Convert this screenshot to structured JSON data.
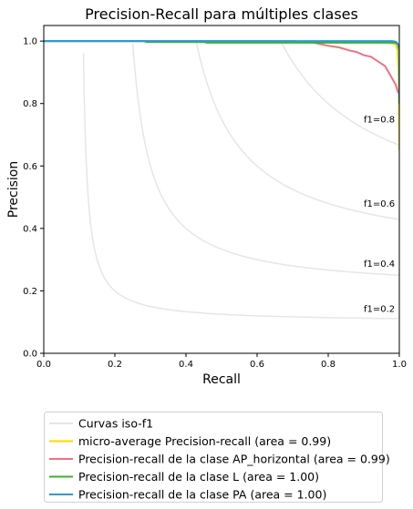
{
  "chart_data": {
    "type": "line",
    "title": "Precision-Recall para múltiples clases",
    "xlabel": "Recall",
    "ylabel": "Precision",
    "xlim": [
      0.0,
      1.0
    ],
    "ylim": [
      0.0,
      1.05
    ],
    "xticks": [
      "0.0",
      "0.2",
      "0.4",
      "0.6",
      "0.8",
      "1.0"
    ],
    "yticks": [
      "0.0",
      "0.2",
      "0.4",
      "0.6",
      "0.8",
      "1.0"
    ],
    "grid": false,
    "legend_position": "below",
    "iso_f1": {
      "legend": "Curvas iso-f1",
      "color": "#e6e6e6",
      "levels": [
        {
          "f": 0.2,
          "label": "f1=0.2"
        },
        {
          "f": 0.4,
          "label": "f1=0.4"
        },
        {
          "f": 0.6,
          "label": "f1=0.6"
        },
        {
          "f": 0.8,
          "label": "f1=0.8"
        }
      ]
    },
    "series": [
      {
        "name": "micro-average Precision-recall (area = 0.99)",
        "color": "#ffd700",
        "points": [
          [
            0.0,
            1.0
          ],
          [
            0.6,
            1.0
          ],
          [
            0.9,
            0.998
          ],
          [
            0.97,
            0.995
          ],
          [
            0.99,
            0.99
          ],
          [
            0.995,
            0.97
          ],
          [
            0.998,
            0.9
          ],
          [
            1.0,
            0.7
          ],
          [
            1.0,
            0.65
          ]
        ]
      },
      {
        "name": "Precision-recall de la clase AP_horizontal (area = 0.99)",
        "color": "#f07082",
        "points": [
          [
            0.0,
            1.0
          ],
          [
            0.7,
            1.0
          ],
          [
            0.76,
            0.995
          ],
          [
            0.8,
            0.985
          ],
          [
            0.83,
            0.98
          ],
          [
            0.86,
            0.97
          ],
          [
            0.88,
            0.965
          ],
          [
            0.9,
            0.955
          ],
          [
            0.92,
            0.95
          ],
          [
            0.94,
            0.935
          ],
          [
            0.96,
            0.92
          ],
          [
            0.97,
            0.9
          ],
          [
            0.98,
            0.88
          ],
          [
            0.99,
            0.86
          ],
          [
            0.995,
            0.84
          ],
          [
            1.0,
            0.83
          ]
        ]
      },
      {
        "name": "Precision-recall de la clase L (area = 1.00)",
        "color": "#3cb02c",
        "points": [
          [
            0.0,
            1.0
          ],
          [
            0.28,
            1.0
          ],
          [
            0.29,
            0.997
          ],
          [
            0.45,
            0.997
          ],
          [
            0.46,
            0.995
          ],
          [
            0.99,
            0.995
          ],
          [
            0.995,
            0.99
          ],
          [
            1.0,
            0.98
          ]
        ]
      },
      {
        "name": "Precision-recall de la clase PA (area = 1.00)",
        "color": "#2b9ad6",
        "points": [
          [
            0.0,
            1.0
          ],
          [
            0.98,
            1.0
          ],
          [
            0.99,
            0.998
          ],
          [
            0.995,
            0.993
          ],
          [
            1.0,
            0.97
          ],
          [
            1.0,
            0.8
          ]
        ]
      }
    ]
  }
}
